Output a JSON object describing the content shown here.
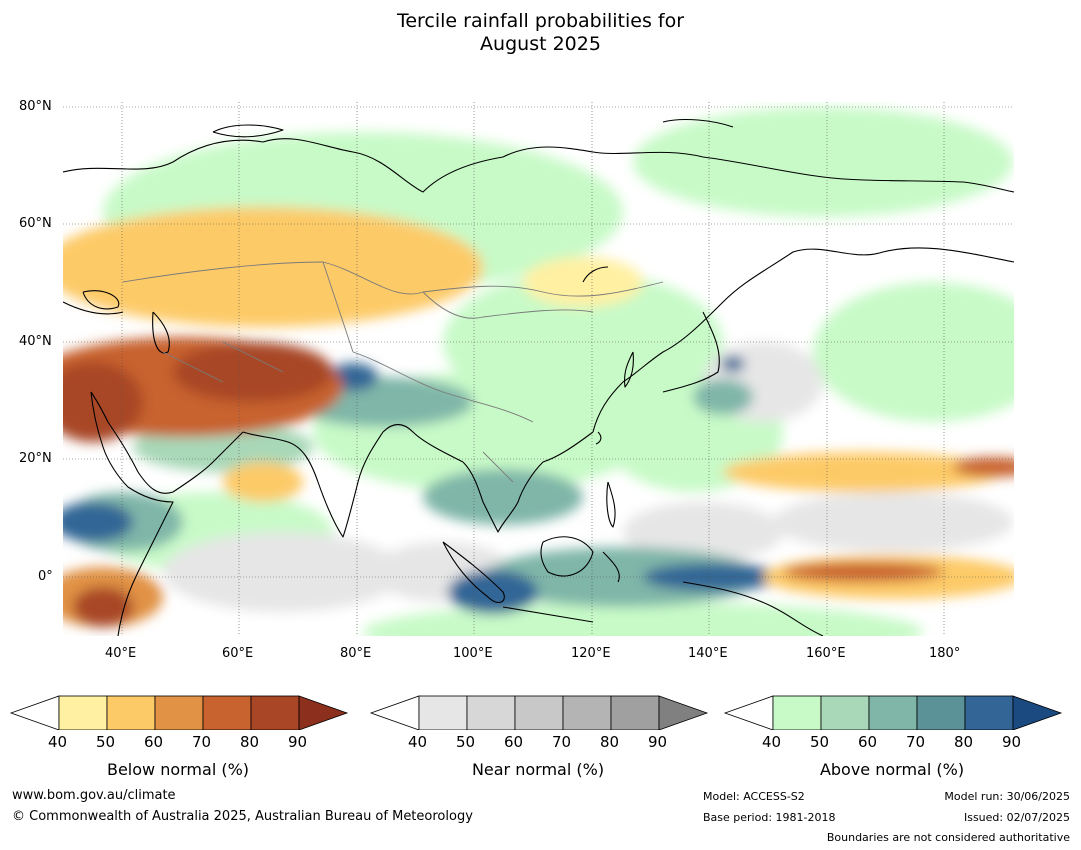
{
  "title": {
    "line1": "Tercile rainfall probabilities for",
    "line2": "August 2025"
  },
  "map": {
    "lat_ticks": [
      "80°N",
      "60°N",
      "40°N",
      "20°N",
      "0°"
    ],
    "lon_ticks": [
      "40°E",
      "60°E",
      "80°E",
      "100°E",
      "120°E",
      "140°E",
      "160°E",
      "180°"
    ],
    "lon_range": [
      30,
      192
    ],
    "lat_range": [
      -10,
      81
    ]
  },
  "colorbars": [
    {
      "label": "Below normal (%)",
      "ticks": [
        "40",
        "50",
        "60",
        "70",
        "80",
        "90"
      ],
      "colors": [
        "#ffffff",
        "#fff0a2",
        "#fdca68",
        "#e19245",
        "#c8622f",
        "#a84626",
        "#8c2f1c"
      ]
    },
    {
      "label": "Near normal (%)",
      "ticks": [
        "40",
        "50",
        "60",
        "70",
        "80",
        "90"
      ],
      "colors": [
        "#ffffff",
        "#e6e6e6",
        "#d7d7d7",
        "#c8c8c8",
        "#b4b4b4",
        "#a0a0a0",
        "#808080"
      ]
    },
    {
      "label": "Above normal (%)",
      "ticks": [
        "40",
        "50",
        "60",
        "70",
        "80",
        "90"
      ],
      "colors": [
        "#ffffff",
        "#c8fac8",
        "#a8d8b8",
        "#7fb6a8",
        "#5a9298",
        "#336696",
        "#1b4a80"
      ]
    }
  ],
  "footer": {
    "website": "www.bom.gov.au/climate",
    "copyright": "© Commonwealth of Australia 2025, Australian Bureau of Meteorology",
    "model": "Model: ACCESS-S2",
    "base_period": "Base period: 1981-2018",
    "model_run": "Model run: 30/06/2025",
    "issued": "Issued: 02/07/2025",
    "disclaimer": "Boundaries are not considered authoritative"
  }
}
